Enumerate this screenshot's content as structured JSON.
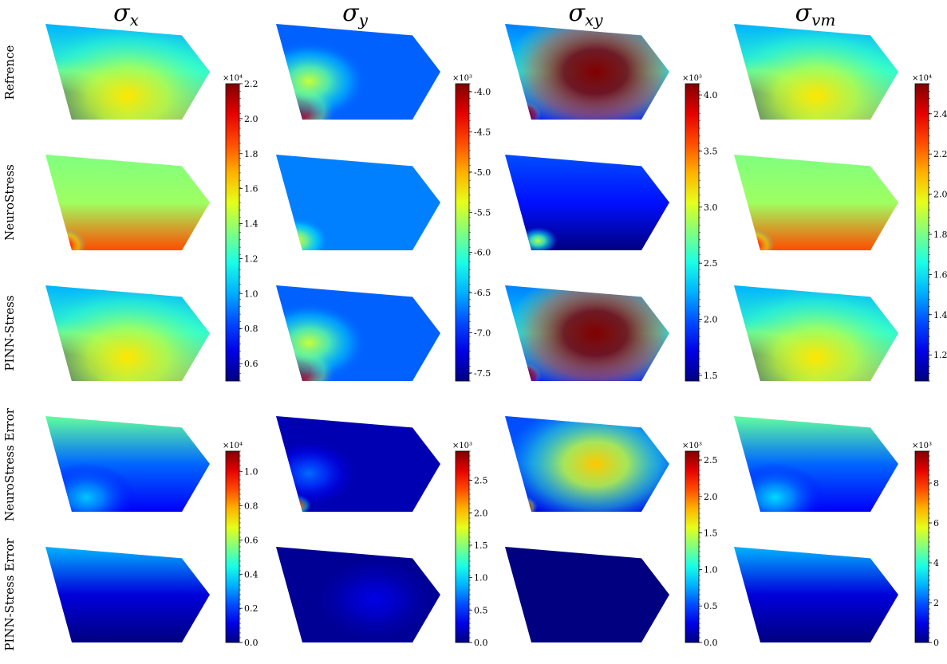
{
  "columns": [
    {
      "base": "σ",
      "sub": "x"
    },
    {
      "base": "σ",
      "sub": "y"
    },
    {
      "base": "σ",
      "sub": "xy"
    },
    {
      "base": "σ",
      "sub": "vm"
    }
  ],
  "rows": [
    "Refrence",
    "NeuroStress",
    "PINN-Stress",
    "NeuroStress Error",
    "PINN-Stress Error"
  ],
  "chart_data": {
    "type": "heatmap",
    "colormap": "jet",
    "colorbars": [
      {
        "group": "fields",
        "column": "σx",
        "exponent": "×10⁴",
        "ticks": [
          "0.6",
          "0.8",
          "1.0",
          "1.2",
          "1.4",
          "1.6",
          "1.8",
          "2.0",
          "2.2"
        ],
        "range": [
          0.5,
          2.2
        ]
      },
      {
        "group": "fields",
        "column": "σy",
        "exponent": "×10³",
        "ticks": [
          "-7.5",
          "-7.0",
          "-6.5",
          "-6.0",
          "-5.5",
          "-5.0",
          "-4.5",
          "-4.0"
        ],
        "range": [
          -7.6,
          -3.9
        ]
      },
      {
        "group": "fields",
        "column": "σxy",
        "exponent": "×10³",
        "ticks": [
          "1.5",
          "2.0",
          "2.5",
          "3.0",
          "3.5",
          "4.0"
        ],
        "range": [
          1.45,
          4.1
        ]
      },
      {
        "group": "fields",
        "column": "σvm",
        "exponent": "×10⁴",
        "ticks": [
          "1.2",
          "1.4",
          "1.6",
          "1.8",
          "2.0",
          "2.2",
          "2.4"
        ],
        "range": [
          1.07,
          2.55
        ]
      },
      {
        "group": "errors",
        "column": "σx",
        "exponent": "×10⁴",
        "ticks": [
          "0.0",
          "0.2",
          "0.4",
          "0.6",
          "0.8",
          "1.0"
        ],
        "range": [
          0.0,
          1.12
        ]
      },
      {
        "group": "errors",
        "column": "σy",
        "exponent": "×10³",
        "ticks": [
          "0.0",
          "0.5",
          "1.0",
          "1.5",
          "2.0",
          "2.5"
        ],
        "range": [
          0.0,
          2.95
        ]
      },
      {
        "group": "errors",
        "column": "σxy",
        "exponent": "×10³",
        "ticks": [
          "0.0",
          "0.5",
          "1.0",
          "1.5",
          "2.0",
          "2.5"
        ],
        "range": [
          0.0,
          2.62
        ]
      },
      {
        "group": "errors",
        "column": "σvm",
        "exponent": "×10³",
        "ticks": [
          "0",
          "2",
          "4",
          "6",
          "8"
        ],
        "range": [
          0.0,
          9.6
        ]
      }
    ],
    "fields": {
      "σx": {
        "Refrence": {
          "background": 0.3,
          "blobs": [
            [
              0.12,
              0.95,
              0.55,
              1.0
            ],
            [
              0.5,
              0.75,
              0.7,
              0.35
            ]
          ],
          "gradient_top": 0.0,
          "gradient_bottom": 0.45
        },
        "NeuroStress": {
          "background": 0.35,
          "blobs": [
            [
              0.1,
              0.95,
              0.15,
              0.7
            ]
          ],
          "gradient_top": 0.15,
          "gradient_bottom": 0.45
        },
        "PINN-Stress": {
          "background": 0.3,
          "blobs": [
            [
              0.12,
              0.95,
              0.55,
              1.0
            ],
            [
              0.5,
              0.75,
              0.7,
              0.35
            ]
          ],
          "gradient_top": 0.0,
          "gradient_bottom": 0.45
        },
        "NeuroStress Error": {
          "background": 0.12,
          "blobs": [
            [
              0.03,
              0.97,
              0.07,
              1.0
            ],
            [
              0.25,
              0.85,
              0.3,
              0.2
            ]
          ],
          "gradient_top": 0.35,
          "gradient_bottom": 0.0
        },
        "PINN-Stress Error": {
          "background": 0.0,
          "blobs": [],
          "gradient_top": 0.3,
          "gradient_bottom": 0.0
        }
      },
      "σy": {
        "Refrence": {
          "background": 0.22,
          "blobs": [
            [
              0.12,
              0.9,
              0.25,
              1.0
            ],
            [
              0.2,
              0.6,
              0.35,
              0.35
            ]
          ],
          "gradient_top": 0.0,
          "gradient_bottom": 0.0
        },
        "NeuroStress": {
          "background": 0.25,
          "blobs": [
            [
              0.12,
              0.9,
              0.2,
              0.35
            ]
          ],
          "gradient_top": 0.0,
          "gradient_bottom": 0.0
        },
        "PINN-Stress": {
          "background": 0.22,
          "blobs": [
            [
              0.12,
              0.9,
              0.25,
              1.0
            ],
            [
              0.2,
              0.6,
              0.35,
              0.35
            ]
          ],
          "gradient_top": 0.0,
          "gradient_bottom": 0.0
        },
        "NeuroStress Error": {
          "background": 0.05,
          "blobs": [
            [
              0.12,
              0.93,
              0.1,
              1.0
            ],
            [
              0.2,
              0.6,
              0.3,
              0.18
            ]
          ],
          "gradient_top": 0.0,
          "gradient_bottom": 0.0
        },
        "PINN-Stress Error": {
          "background": 0.02,
          "blobs": [
            [
              0.6,
              0.55,
              0.4,
              0.08
            ]
          ],
          "gradient_top": 0.0,
          "gradient_bottom": 0.0
        }
      },
      "σxy": {
        "Refrence": {
          "background": 0.55,
          "blobs": [
            [
              0.55,
              0.5,
              0.55,
              0.65
            ],
            [
              0.1,
              0.95,
              0.12,
              1.0
            ]
          ],
          "gradient_top": -0.3,
          "gradient_bottom": -0.4
        },
        "NeuroStress": {
          "background": 0.2,
          "blobs": [
            [
              0.2,
              0.9,
              0.12,
              0.35
            ]
          ],
          "gradient_top": 0.0,
          "gradient_bottom": -0.2
        },
        "PINN-Stress": {
          "background": 0.55,
          "blobs": [
            [
              0.55,
              0.5,
              0.55,
              0.65
            ],
            [
              0.1,
              0.95,
              0.12,
              1.0
            ]
          ],
          "gradient_top": -0.3,
          "gradient_bottom": -0.4
        },
        "NeuroStress Error": {
          "background": 0.3,
          "blobs": [
            [
              0.55,
              0.5,
              0.55,
              0.38
            ],
            [
              0.1,
              0.95,
              0.1,
              1.0
            ]
          ],
          "gradient_top": -0.1,
          "gradient_bottom": -0.2
        },
        "PINN-Stress Error": {
          "background": 0.0,
          "blobs": [],
          "gradient_top": 0.0,
          "gradient_bottom": 0.0
        }
      },
      "σvm": {
        "Refrence": {
          "background": 0.3,
          "blobs": [
            [
              0.12,
              0.95,
              0.55,
              1.0
            ],
            [
              0.5,
              0.75,
              0.7,
              0.35
            ]
          ],
          "gradient_top": 0.0,
          "gradient_bottom": 0.45
        },
        "NeuroStress": {
          "background": 0.35,
          "blobs": [
            [
              0.1,
              0.95,
              0.15,
              0.7
            ]
          ],
          "gradient_top": 0.15,
          "gradient_bottom": 0.45
        },
        "PINN-Stress": {
          "background": 0.3,
          "blobs": [
            [
              0.12,
              0.95,
              0.55,
              1.0
            ],
            [
              0.5,
              0.75,
              0.7,
              0.35
            ]
          ],
          "gradient_top": 0.0,
          "gradient_bottom": 0.45
        },
        "NeuroStress Error": {
          "background": 0.12,
          "blobs": [
            [
              0.03,
              0.97,
              0.07,
              1.0
            ],
            [
              0.25,
              0.85,
              0.3,
              0.22
            ]
          ],
          "gradient_top": 0.35,
          "gradient_bottom": 0.0
        },
        "PINN-Stress Error": {
          "background": 0.0,
          "blobs": [],
          "gradient_top": 0.3,
          "gradient_bottom": 0.0
        }
      }
    }
  }
}
